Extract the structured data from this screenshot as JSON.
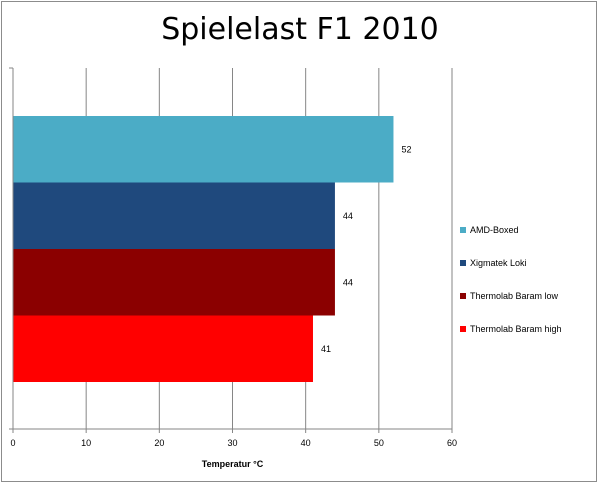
{
  "chart_data": {
    "type": "bar",
    "orientation": "horizontal",
    "title": "Spielelast F1 2010",
    "xlabel": "Temperatur °C",
    "ylabel": "",
    "xlim": [
      0,
      60
    ],
    "x_ticks": [
      "0",
      "10",
      "20",
      "30",
      "40",
      "50",
      "60"
    ],
    "grid": "vertical",
    "legend_position": "right",
    "series": [
      {
        "name": "AMD-Boxed",
        "value": 52,
        "label": "52",
        "color": "#4bacc6"
      },
      {
        "name": "Xigmatek Loki",
        "value": 44,
        "label": "44",
        "color": "#1f497d"
      },
      {
        "name": "Thermolab Baram low",
        "value": 44,
        "label": "44",
        "color": "#8b0000"
      },
      {
        "name": "Thermolab Baram high",
        "value": 41,
        "label": "41",
        "color": "#ff0000"
      }
    ]
  }
}
